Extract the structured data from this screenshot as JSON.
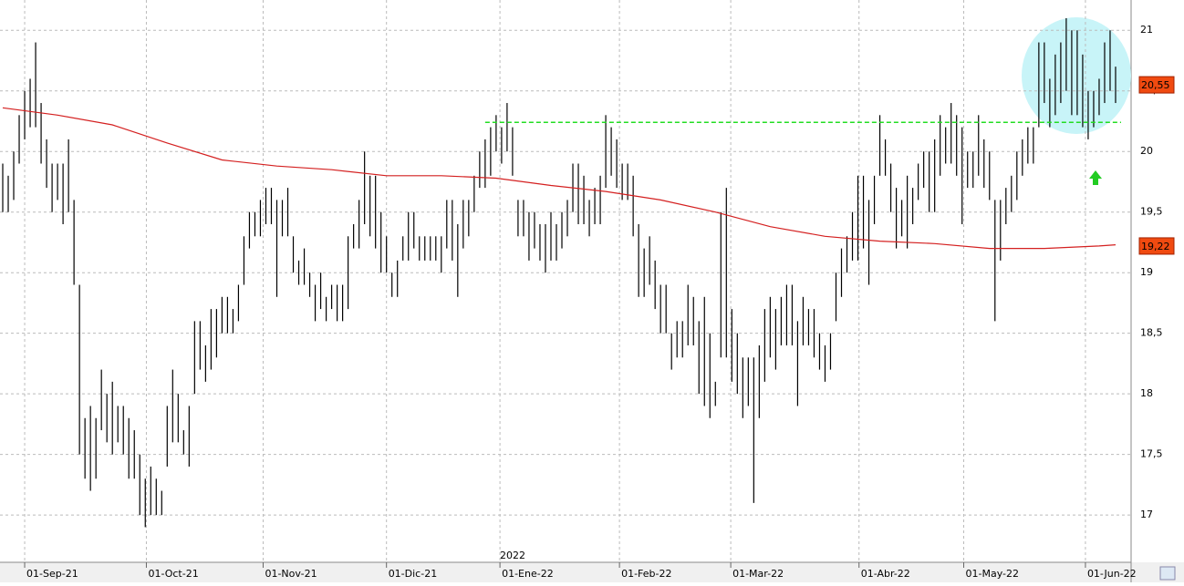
{
  "chart_data": {
    "type": "ohlc",
    "bar_color": "#000000",
    "high": [
      19.9,
      19.8,
      20.0,
      20.3,
      20.5,
      20.6,
      20.9,
      20.4,
      20.1,
      19.9,
      19.9,
      19.9,
      20.1,
      19.6,
      18.9,
      17.8,
      17.9,
      17.8,
      18.2,
      18.0,
      18.1,
      17.9,
      17.9,
      17.8,
      17.7,
      17.5,
      17.3,
      17.4,
      17.3,
      17.2,
      17.9,
      18.2,
      18.0,
      17.7,
      17.9,
      18.6,
      18.6,
      18.4,
      18.7,
      18.7,
      18.8,
      18.8,
      18.7,
      18.9,
      19.3,
      19.5,
      19.5,
      19.6,
      19.7,
      19.7,
      19.6,
      19.6,
      19.7,
      19.3,
      19.1,
      19.2,
      19.0,
      18.9,
      19.0,
      18.8,
      18.9,
      18.9,
      18.9,
      19.3,
      19.4,
      19.6,
      20.0,
      19.8,
      19.8,
      19.5,
      19.3,
      19.0,
      19.1,
      19.3,
      19.5,
      19.5,
      19.3,
      19.3,
      19.3,
      19.3,
      19.3,
      19.6,
      19.6,
      19.4,
      19.6,
      19.6,
      19.8,
      20.0,
      20.1,
      20.2,
      20.3,
      20.2,
      20.4,
      20.2,
      19.6,
      19.6,
      19.5,
      19.5,
      19.4,
      19.4,
      19.5,
      19.4,
      19.5,
      19.6,
      19.9,
      19.9,
      19.8,
      19.6,
      19.7,
      19.8,
      20.3,
      20.2,
      20.1,
      19.9,
      19.9,
      19.8,
      19.4,
      19.2,
      19.3,
      19.1,
      18.9,
      18.9,
      18.5,
      18.6,
      18.6,
      18.9,
      18.8,
      18.6,
      18.8,
      18.5,
      18.1,
      19.5,
      19.7,
      18.7,
      18.5,
      18.3,
      18.3,
      18.3,
      18.4,
      18.7,
      18.8,
      18.7,
      18.8,
      18.9,
      18.9,
      18.6,
      18.8,
      18.7,
      18.7,
      18.5,
      18.4,
      18.5,
      19.0,
      19.2,
      19.3,
      19.5,
      19.8,
      19.8,
      19.6,
      19.8,
      20.3,
      20.1,
      19.9,
      19.7,
      19.6,
      19.8,
      19.7,
      19.9,
      20.0,
      20.0,
      20.1,
      20.3,
      20.2,
      20.4,
      20.3,
      20.2,
      20.0,
      20.0,
      20.3,
      20.1,
      20.0,
      19.6,
      19.6,
      19.7,
      19.8,
      20.0,
      20.1,
      20.2,
      20.2,
      20.9,
      20.9,
      20.6,
      20.8,
      20.9,
      21.1,
      21.0,
      21.0,
      20.8,
      20.5,
      20.5,
      20.6,
      20.9,
      21.0,
      20.7
    ],
    "low": [
      19.5,
      19.5,
      19.6,
      19.9,
      20.1,
      20.2,
      20.2,
      19.9,
      19.7,
      19.5,
      19.6,
      19.4,
      19.5,
      18.9,
      17.5,
      17.3,
      17.2,
      17.3,
      17.7,
      17.6,
      17.5,
      17.6,
      17.5,
      17.3,
      17.3,
      17.0,
      16.9,
      17.0,
      17.0,
      17.0,
      17.4,
      17.6,
      17.6,
      17.5,
      17.4,
      18.0,
      18.2,
      18.1,
      18.2,
      18.3,
      18.5,
      18.5,
      18.5,
      18.6,
      18.9,
      19.2,
      19.3,
      19.3,
      19.4,
      19.4,
      18.8,
      19.3,
      19.3,
      19.0,
      18.9,
      18.9,
      18.8,
      18.6,
      18.7,
      18.6,
      18.7,
      18.6,
      18.6,
      18.7,
      19.2,
      19.2,
      19.4,
      19.3,
      19.2,
      19.0,
      19.0,
      18.8,
      18.8,
      19.1,
      19.1,
      19.2,
      19.1,
      19.1,
      19.1,
      19.1,
      19.0,
      19.2,
      19.1,
      18.8,
      19.2,
      19.3,
      19.5,
      19.7,
      19.7,
      19.8,
      20.0,
      19.9,
      20.0,
      19.8,
      19.3,
      19.3,
      19.1,
      19.2,
      19.1,
      19.0,
      19.1,
      19.1,
      19.2,
      19.3,
      19.5,
      19.4,
      19.4,
      19.3,
      19.4,
      19.4,
      19.7,
      19.8,
      19.7,
      19.6,
      19.6,
      19.3,
      18.8,
      18.8,
      18.9,
      18.7,
      18.5,
      18.5,
      18.2,
      18.3,
      18.3,
      18.4,
      18.4,
      18.0,
      17.9,
      17.8,
      17.9,
      18.3,
      18.3,
      18.1,
      18.0,
      17.8,
      17.9,
      17.1,
      17.8,
      18.1,
      18.3,
      18.2,
      18.4,
      18.4,
      18.4,
      17.9,
      18.4,
      18.4,
      18.3,
      18.2,
      18.1,
      18.2,
      18.6,
      18.8,
      19.0,
      19.1,
      19.1,
      19.2,
      18.9,
      19.4,
      19.8,
      19.8,
      19.5,
      19.2,
      19.3,
      19.2,
      19.4,
      19.6,
      19.7,
      19.5,
      19.5,
      19.8,
      19.9,
      19.9,
      19.8,
      19.4,
      19.7,
      19.7,
      19.8,
      19.7,
      19.6,
      18.6,
      19.1,
      19.4,
      19.5,
      19.6,
      19.8,
      19.9,
      19.9,
      20.2,
      20.4,
      20.2,
      20.3,
      20.4,
      20.5,
      20.3,
      20.3,
      20.2,
      20.1,
      20.2,
      20.3,
      20.4,
      20.5,
      20.4
    ],
    "moving_average": {
      "color": "#d42020",
      "x": [
        0,
        10,
        20,
        30,
        40,
        50,
        60,
        70,
        80,
        90,
        100,
        110,
        120,
        130,
        140,
        150,
        160,
        170,
        180,
        190,
        200,
        203
      ],
      "values": [
        20.36,
        20.3,
        20.22,
        20.07,
        19.93,
        19.88,
        19.85,
        19.8,
        19.8,
        19.78,
        19.72,
        19.67,
        19.6,
        19.5,
        19.38,
        19.3,
        19.26,
        19.24,
        19.2,
        19.2,
        19.22,
        19.23
      ]
    },
    "level_line": {
      "color": "#22dd22",
      "x": [
        88,
        204
      ],
      "value": 20.24
    },
    "price_tags": [
      {
        "value": 20.55,
        "label": "20,55"
      },
      {
        "value": 19.22,
        "label": "19,22"
      }
    ],
    "annotation": "2022",
    "xlim": [
      -0.5,
      205.83
    ],
    "xticks": [
      {
        "value": 4,
        "label": "01-Sep-21"
      },
      {
        "value": 26.2,
        "label": "01-Oct-21"
      },
      {
        "value": 47.5,
        "label": "01-Nov-21"
      },
      {
        "value": 70,
        "label": "01-Dic-21"
      },
      {
        "value": 90.7,
        "label": "01-Ene-22"
      },
      {
        "value": 112.5,
        "label": "01-Feb-22"
      },
      {
        "value": 132.8,
        "label": "01-Mar-22"
      },
      {
        "value": 156.2,
        "label": "01-Abr-22"
      },
      {
        "value": 175.3,
        "label": "01-May-22"
      },
      {
        "value": 197.5,
        "label": "01-Jun-22"
      }
    ],
    "ylim": [
      16.61,
      21.25
    ],
    "yticks": [
      17,
      {
        "value": 17.5,
        "label": "17,5"
      },
      18,
      {
        "value": 18.5,
        "label": "18,5"
      },
      19,
      {
        "value": 19.5,
        "label": "19,5"
      },
      20,
      {
        "value": 20.5,
        "label": "20,5"
      },
      21
    ],
    "grid": true
  }
}
